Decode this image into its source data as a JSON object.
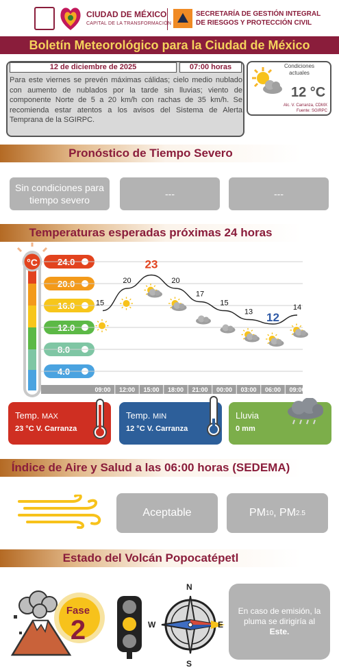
{
  "header": {
    "cdmx_title": "CIUDAD DE MÉXICO",
    "cdmx_subtitle": "CAPITAL DE LA TRANSFORMACIÓN",
    "agency_line1": "SECRETARÍA DE GESTIÓN INTEGRAL",
    "agency_line2": "DE RIESGOS Y PROTECCIÓN CIVIL"
  },
  "title": "Boletín Meteorológico para la Ciudad de México",
  "bulletin": {
    "date": "12 de diciembre de 2025",
    "time": "07:00 horas",
    "text": "Para este viernes se prevén máximas cálidas; cielo medio nublado con aumento de nublados por la tarde sin lluvias; viento de componente Norte de 5 a 20 km/h con rachas de 35 km/h. Se recomienda estar atentos a  los avisos del Sistema de Alerta Temprana de la SGIRPC."
  },
  "current": {
    "label": "Condiciones actuales",
    "temp": "12 °C",
    "location": "Alc. V. Carranza, CDMX",
    "source": "Fuente: SGIRPC"
  },
  "severe": {
    "title": "Pronóstico de Tiempo Severo",
    "boxes": [
      "Sin condiciones para tiempo severo",
      "---",
      "---"
    ]
  },
  "temps": {
    "title": "Temperaturas esperadas próximas 24 horas",
    "scale_labels": [
      "24.0",
      "20.0",
      "16.0",
      "12.0",
      "8.0",
      "4.0"
    ],
    "scale_colors": [
      "#e2431e",
      "#f39a1a",
      "#f7c61b",
      "#5cb946",
      "#7fc6a4",
      "#4aa3e0"
    ],
    "unit_icon": "°C"
  },
  "chart_data": {
    "type": "line",
    "categories": [
      "09:00",
      "12:00",
      "15:00",
      "18:00",
      "21:00",
      "00:00",
      "03:00",
      "06:00",
      "09:00"
    ],
    "series": [
      {
        "values": [
          15,
          20,
          23,
          20,
          17,
          15,
          13,
          12,
          14
        ]
      }
    ],
    "value_labels": [
      "15",
      "20",
      "23",
      "20",
      "17",
      "15",
      "13",
      "12",
      "14"
    ],
    "max_index": 2,
    "min_index": 7,
    "max_color": "#e2431e",
    "min_color": "#2f5aa6",
    "ylim": [
      0,
      26
    ]
  },
  "cards": {
    "max_label": "Temp.",
    "max_label_small": "MAX",
    "max_value": "23 °C  V. Carranza",
    "min_label": "Temp.",
    "min_label_small": "MIN",
    "min_value": "12 °C  V. Carranza",
    "rain_label": "Lluvia",
    "rain_value": "0 mm",
    "max_color": "#cf2f22",
    "min_color": "#2d5f9a",
    "rain_color": "#7cae4a"
  },
  "air": {
    "title": "Índice de Aire y Salud a las 06:00 horas (SEDEMA)",
    "status": "Aceptable",
    "pollutant_main": "PM",
    "pollutant_sub1": "10",
    "pollutant_sep": ", PM",
    "pollutant_sub2": "2.5"
  },
  "volcano": {
    "title": "Estado del Volcán Popocatépetl",
    "phase_label": "Fase",
    "phase_num": "2",
    "compass": {
      "n": "N",
      "s": "S",
      "w": "W",
      "e": "E"
    },
    "emission_text_pre": "En caso de emisión, la pluma se dirigiría al ",
    "emission_dir": "Este."
  }
}
